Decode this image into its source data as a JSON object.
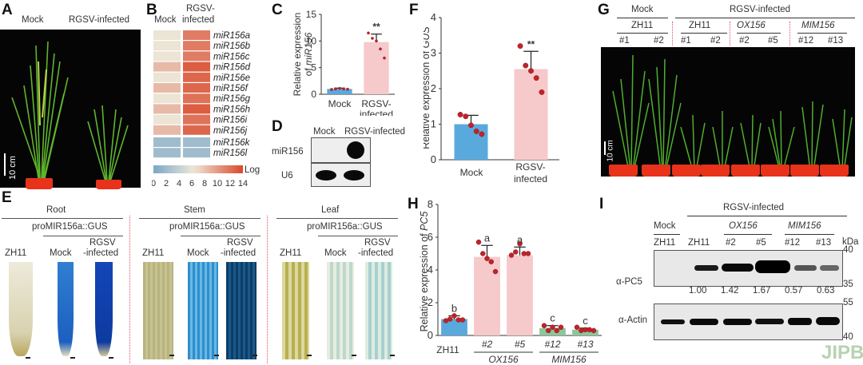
{
  "watermark": "JIPB",
  "panels": {
    "A": {
      "label": "A",
      "conditions": [
        "Mock",
        "RGSV-infected"
      ],
      "scale_bar": "10 cm"
    },
    "B": {
      "label": "B",
      "col_headers": [
        "Mock",
        "RGSV-\ninfected"
      ],
      "col_header_mock": "Mock",
      "col_header_rgsv_1": "RGSV-",
      "col_header_rgsv_2": "infected",
      "rows": [
        "miR156a",
        "miR156b",
        "miR156c",
        "miR156d",
        "miR156e",
        "miR156f",
        "miR156g",
        "miR156h",
        "miR156i",
        "miR156j",
        "miR156k",
        "miR156l"
      ],
      "colorbar_label": "Log",
      "colorbar_ticks": [
        "0",
        "2",
        "4",
        "6",
        "8",
        "10",
        "12",
        "14"
      ],
      "colors": {
        "low": "#7aa7c7",
        "mid": "#ede8d8",
        "high": "#d9482b"
      }
    },
    "C": {
      "label": "C",
      "ylabel_1": "Relative expression",
      "ylabel_2": "of ",
      "ylabel_gene": "miR156",
      "significance": "**",
      "xlabels": [
        "Mock",
        "RGSV-",
        "infected"
      ]
    },
    "D": {
      "label": "D",
      "lanes": [
        "Mock",
        "RGSV-infected"
      ],
      "rows": [
        "miR156",
        "U6"
      ]
    },
    "E": {
      "label": "E",
      "tissues": [
        {
          "name": "Root",
          "construct": "proMIR156a::GUS",
          "samples": [
            "ZH11",
            "Mock",
            "RGSV",
            "-infected"
          ]
        },
        {
          "name": "Stem",
          "construct": "proMIR156a::GUS",
          "samples": [
            "ZH11",
            "Mock",
            "RGSV",
            "-infected"
          ]
        },
        {
          "name": "Leaf",
          "construct": "proMIR156a::GUS",
          "samples": [
            "ZH11",
            "Mock",
            "RGSV",
            "-infected"
          ]
        }
      ]
    },
    "F": {
      "label": "F",
      "ylabel_1": "Relative expression of ",
      "ylabel_gene": "GUS",
      "significance": "**",
      "xlabels": [
        "Mock",
        "RGSV-",
        "infected"
      ]
    },
    "G": {
      "label": "G",
      "group_mock": "Mock",
      "group_rgsv": "RGSV-infected",
      "subgroups": [
        "ZH11",
        "ZH11",
        "OX156",
        "MIM156"
      ],
      "lines": [
        "#1",
        "#2",
        "#1",
        "#2",
        "#2",
        "#5",
        "#12",
        "#13"
      ],
      "scale_bar": "10 cm"
    },
    "H": {
      "label": "H",
      "ylabel_1": "Relative expression of ",
      "ylabel_gene": "PC5",
      "group_labels": [
        "OX156",
        "MIM156"
      ]
    },
    "I": {
      "label": "I",
      "group_rgsv": "RGSV-infected",
      "group_mock": "Mock",
      "subgroups": [
        "OX156",
        "MIM156"
      ],
      "lanes": [
        "ZH11",
        "ZH11",
        "#2",
        "#5",
        "#12",
        "#13"
      ],
      "kda_label": "kDa",
      "pc5_label": "α-PC5",
      "actin_label": "α-Actin",
      "pc5_markers": [
        "40",
        "35"
      ],
      "actin_markers": [
        "55",
        "40"
      ],
      "quantification": [
        "1.00",
        "1.42",
        "1.67",
        "0.57",
        "0.63"
      ]
    }
  },
  "chart_data": [
    {
      "panel": "B",
      "type": "heatmap",
      "title": "",
      "x": [
        "Mock",
        "RGSV-infected"
      ],
      "y": [
        "miR156a",
        "miR156b",
        "miR156c",
        "miR156d",
        "miR156e",
        "miR156f",
        "miR156g",
        "miR156h",
        "miR156i",
        "miR156j",
        "miR156k",
        "miR156l"
      ],
      "values": [
        [
          6.5,
          11.5
        ],
        [
          6.5,
          11.5
        ],
        [
          6.5,
          11.5
        ],
        [
          8.5,
          13
        ],
        [
          6.5,
          12.5
        ],
        [
          8.5,
          12.5
        ],
        [
          6.5,
          12
        ],
        [
          8.5,
          13
        ],
        [
          6.5,
          12
        ],
        [
          8.5,
          12.5
        ],
        [
          2,
          2
        ],
        [
          2,
          2
        ]
      ],
      "colorbar": {
        "label": "Log",
        "range": [
          0,
          14
        ],
        "ticks": [
          0,
          2,
          4,
          6,
          8,
          10,
          12,
          14
        ]
      }
    },
    {
      "panel": "C",
      "type": "bar",
      "categories": [
        "Mock",
        "RGSV-infected"
      ],
      "values": [
        1.0,
        9.8
      ],
      "errors": [
        0.15,
        1.5
      ],
      "points": [
        [
          0.9,
          1.0,
          1.1,
          1.0,
          0.95
        ],
        [
          11.5,
          10.5,
          10.0,
          8.5,
          6.8
        ]
      ],
      "colors": [
        "#5aa9dc",
        "#f6c9cb"
      ],
      "significance": [
        "",
        "**"
      ],
      "xlabel": "",
      "ylabel": "Relative expression of miR156",
      "ylim": [
        0,
        15
      ],
      "yticks": [
        0,
        5,
        10,
        15
      ]
    },
    {
      "panel": "F",
      "type": "bar",
      "categories": [
        "Mock",
        "RGSV-infected"
      ],
      "values": [
        1.0,
        2.55
      ],
      "errors": [
        0.25,
        0.5
      ],
      "points": [
        [
          1.27,
          1.22,
          0.97,
          0.8,
          0.72
        ],
        [
          3.2,
          2.65,
          2.5,
          2.3,
          1.9
        ]
      ],
      "colors": [
        "#5aa9dc",
        "#f6c9cb"
      ],
      "significance": [
        "",
        "**"
      ],
      "xlabel": "",
      "ylabel": "Relative expression of GUS",
      "ylim": [
        0,
        4
      ],
      "yticks": [
        0,
        1,
        2,
        3,
        4
      ]
    },
    {
      "panel": "H",
      "type": "bar",
      "categories": [
        "ZH11",
        "#2",
        "#5",
        "#12",
        "#13"
      ],
      "groups": [
        {
          "name": "",
          "members": [
            "ZH11"
          ]
        },
        {
          "name": "OX156",
          "members": [
            "#2",
            "#5"
          ]
        },
        {
          "name": "MIM156",
          "members": [
            "#12",
            "#13"
          ]
        }
      ],
      "values": [
        1.0,
        4.8,
        4.9,
        0.45,
        0.35
      ],
      "errors": [
        0.2,
        0.7,
        0.5,
        0.15,
        0.1
      ],
      "points": [
        [
          0.9,
          1.0,
          1.2,
          0.95,
          0.95
        ],
        [
          5.7,
          5.0,
          4.7,
          4.5,
          3.9
        ],
        [
          4.9,
          5.1,
          5.6,
          5.0,
          5.0
        ],
        [
          0.6,
          0.3,
          0.5,
          0.3,
          0.5
        ],
        [
          0.5,
          0.3,
          0.35,
          0.35,
          0.3
        ]
      ],
      "letters": [
        "b",
        "a",
        "a",
        "c",
        "c"
      ],
      "colors": [
        "#5aa9dc",
        "#f6c9cb",
        "#f6c9cb",
        "#8cc69b",
        "#8cc69b"
      ],
      "xlabel": "",
      "ylabel": "Relative expression of PC5",
      "ylim": [
        0,
        8
      ],
      "yticks": [
        0,
        2,
        4,
        6,
        8
      ]
    }
  ]
}
